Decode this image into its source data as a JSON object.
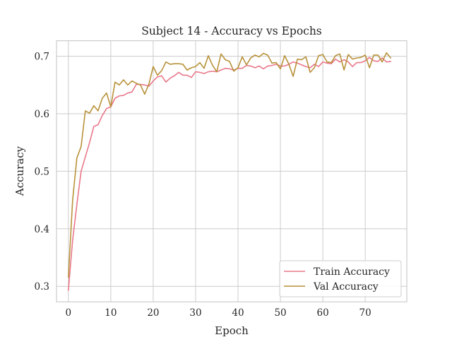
{
  "chart_data": {
    "type": "line",
    "title": "Subject 14 - Accuracy vs Epochs",
    "xlabel": "Epoch",
    "ylabel": "Accuracy",
    "xlim": [
      -2.8,
      79.8
    ],
    "ylim": [
      0.273,
      0.727
    ],
    "xticks": [
      0,
      10,
      20,
      30,
      40,
      50,
      60,
      70
    ],
    "yticks": [
      0.3,
      0.4,
      0.5,
      0.6,
      0.7
    ],
    "ytick_labels": [
      "0.3",
      "0.4",
      "0.5",
      "0.6",
      "0.7"
    ],
    "grid": true,
    "legend_position": "lower right",
    "x": [
      0,
      1,
      2,
      3,
      4,
      5,
      6,
      7,
      8,
      9,
      10,
      11,
      12,
      13,
      14,
      15,
      16,
      17,
      18,
      19,
      20,
      21,
      22,
      23,
      24,
      25,
      26,
      27,
      28,
      29,
      30,
      31,
      32,
      33,
      34,
      35,
      36,
      37,
      38,
      39,
      40,
      41,
      42,
      43,
      44,
      45,
      46,
      47,
      48,
      49,
      50,
      51,
      52,
      53,
      54,
      55,
      56,
      57,
      58,
      59,
      60,
      61,
      62,
      63,
      64,
      65,
      66,
      67,
      68,
      69,
      70,
      71,
      72,
      73,
      74,
      75,
      76
    ],
    "series": [
      {
        "name": "Train Accuracy",
        "color": "#e8788a",
        "values": [
          0.293,
          0.38,
          0.442,
          0.5,
          0.525,
          0.55,
          0.578,
          0.581,
          0.597,
          0.609,
          0.612,
          0.627,
          0.631,
          0.632,
          0.636,
          0.638,
          0.651,
          0.651,
          0.65,
          0.648,
          0.657,
          0.664,
          0.666,
          0.655,
          0.662,
          0.666,
          0.672,
          0.667,
          0.667,
          0.663,
          0.673,
          0.672,
          0.67,
          0.673,
          0.674,
          0.673,
          0.676,
          0.679,
          0.678,
          0.676,
          0.679,
          0.679,
          0.684,
          0.683,
          0.68,
          0.683,
          0.678,
          0.683,
          0.684,
          0.686,
          0.683,
          0.683,
          0.686,
          0.69,
          0.688,
          0.685,
          0.682,
          0.68,
          0.686,
          0.682,
          0.69,
          0.688,
          0.687,
          0.695,
          0.69,
          0.694,
          0.69,
          0.682,
          0.689,
          0.689,
          0.692,
          0.698,
          0.692,
          0.691,
          0.697,
          0.69,
          0.691
        ]
      },
      {
        "name": "Val Accuracy",
        "color": "#b8923a",
        "values": [
          0.316,
          0.45,
          0.523,
          0.543,
          0.605,
          0.601,
          0.614,
          0.605,
          0.627,
          0.636,
          0.612,
          0.655,
          0.65,
          0.659,
          0.65,
          0.657,
          0.653,
          0.65,
          0.634,
          0.652,
          0.682,
          0.667,
          0.675,
          0.69,
          0.686,
          0.687,
          0.687,
          0.686,
          0.676,
          0.68,
          0.682,
          0.689,
          0.679,
          0.701,
          0.684,
          0.673,
          0.704,
          0.694,
          0.691,
          0.674,
          0.68,
          0.699,
          0.685,
          0.697,
          0.702,
          0.699,
          0.705,
          0.702,
          0.688,
          0.689,
          0.678,
          0.701,
          0.686,
          0.665,
          0.695,
          0.694,
          0.699,
          0.672,
          0.68,
          0.701,
          0.703,
          0.69,
          0.689,
          0.701,
          0.704,
          0.676,
          0.703,
          0.695,
          0.697,
          0.698,
          0.702,
          0.68,
          0.702,
          0.702,
          0.69,
          0.706,
          0.697
        ]
      }
    ]
  }
}
